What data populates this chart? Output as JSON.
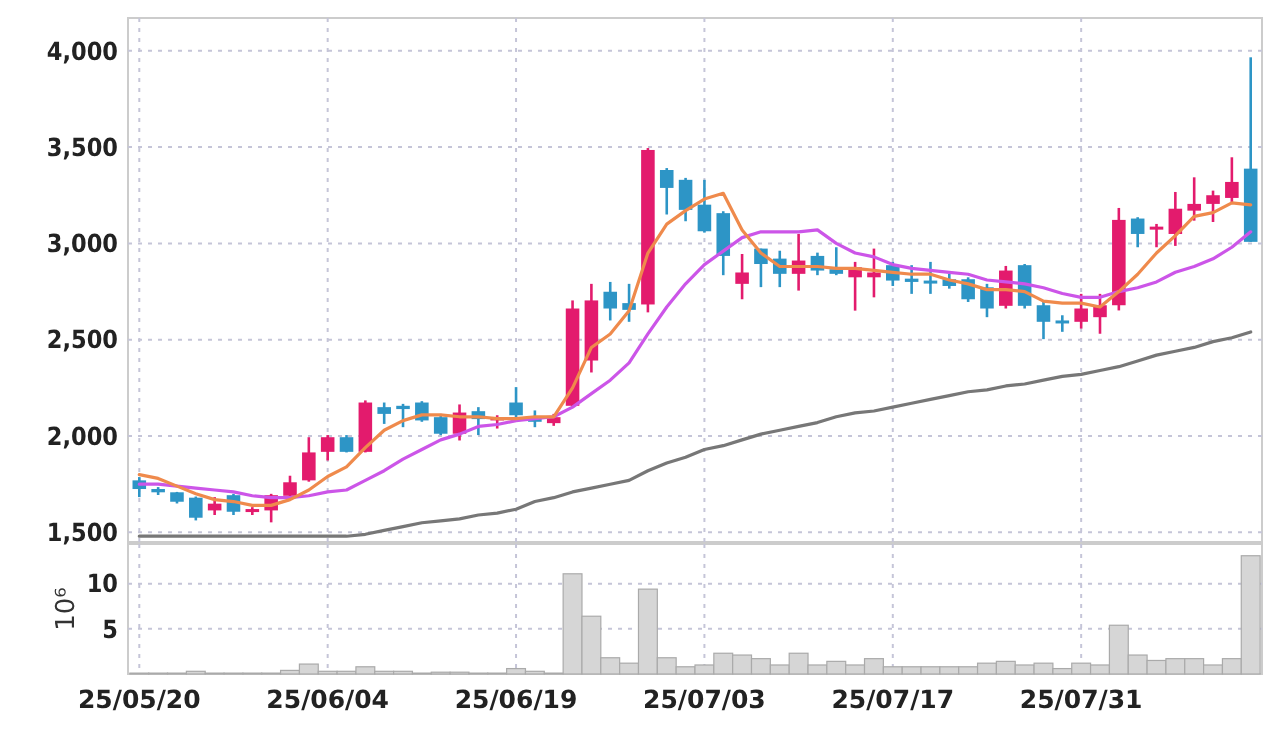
{
  "chart_data": [
    {
      "type": "candlestick",
      "categories": [
        null,
        null,
        null,
        null,
        null,
        null,
        null,
        null,
        null,
        null,
        null,
        null,
        null,
        null,
        null,
        null,
        null,
        null,
        null,
        null,
        null,
        null,
        null,
        null,
        null,
        null,
        null,
        null,
        null,
        null,
        null,
        null,
        null,
        null,
        null,
        null,
        null,
        null,
        null,
        null,
        null,
        null,
        null,
        null,
        null,
        null,
        null,
        null,
        null,
        null,
        null,
        null,
        null,
        null,
        null,
        null,
        null,
        null,
        null,
        null
      ],
      "ohlc": [
        [
          1770,
          1787,
          1683,
          1725
        ],
        [
          1725,
          1735,
          1694,
          1708
        ],
        [
          1708,
          1710,
          1650,
          1659
        ],
        [
          1680,
          1686,
          1562,
          1576
        ],
        [
          1614,
          1683,
          1590,
          1649
        ],
        [
          1693,
          1700,
          1590,
          1607
        ],
        [
          1607,
          1631,
          1590,
          1621
        ],
        [
          1614,
          1700,
          1552,
          1693
        ],
        [
          1690,
          1794,
          1683,
          1760
        ],
        [
          1770,
          1994,
          1763,
          1915
        ],
        [
          1918,
          2005,
          1873,
          1994
        ],
        [
          1994,
          2005,
          1915,
          1918
        ],
        [
          1918,
          2185,
          1915,
          2174
        ],
        [
          2150,
          2174,
          2063,
          2115
        ],
        [
          2157,
          2167,
          2046,
          2140
        ],
        [
          2174,
          2181,
          2074,
          2081
        ],
        [
          2098,
          2115,
          2005,
          2012
        ],
        [
          2012,
          2164,
          1977,
          2122
        ],
        [
          2129,
          2150,
          2005,
          2088
        ],
        [
          2081,
          2108,
          2039,
          2098
        ],
        [
          2174,
          2254,
          2098,
          2108
        ],
        [
          2098,
          2133,
          2046,
          2074
        ],
        [
          2067,
          2115,
          2053,
          2098
        ],
        [
          2157,
          2704,
          2150,
          2662
        ],
        [
          2392,
          2790,
          2330,
          2704
        ],
        [
          2749,
          2800,
          2600,
          2662
        ],
        [
          2690,
          2790,
          2593,
          2655
        ],
        [
          2683,
          3495,
          2642,
          3485
        ],
        [
          3381,
          3391,
          3150,
          3288
        ],
        [
          3330,
          3340,
          3115,
          3174
        ],
        [
          3201,
          3330,
          3056,
          3063
        ],
        [
          3157,
          3167,
          2835,
          2935
        ],
        [
          2790,
          2945,
          2710,
          2849
        ],
        [
          2973,
          2973,
          2773,
          2893
        ],
        [
          2921,
          2962,
          2773,
          2842
        ],
        [
          2842,
          3049,
          2755,
          2911
        ],
        [
          2935,
          2952,
          2835,
          2859
        ],
        [
          2866,
          2980,
          2835,
          2842
        ],
        [
          2824,
          2904,
          2651,
          2876
        ],
        [
          2824,
          2973,
          2720,
          2849
        ],
        [
          2887,
          2904,
          2779,
          2807
        ],
        [
          2817,
          2887,
          2738,
          2800
        ],
        [
          2807,
          2904,
          2738,
          2800
        ],
        [
          2814,
          2842,
          2765,
          2779
        ],
        [
          2814,
          2824,
          2696,
          2710
        ],
        [
          2772,
          2790,
          2617,
          2662
        ],
        [
          2676,
          2883,
          2662,
          2859
        ],
        [
          2887,
          2893,
          2662,
          2676
        ],
        [
          2679,
          2696,
          2503,
          2593
        ],
        [
          2600,
          2627,
          2541,
          2589
        ],
        [
          2593,
          2738,
          2558,
          2662
        ],
        [
          2617,
          2738,
          2531,
          2679
        ],
        [
          2679,
          3184,
          2652,
          3122
        ],
        [
          3129,
          3136,
          2980,
          3049
        ],
        [
          3073,
          3101,
          2980,
          3087
        ],
        [
          3049,
          3267,
          2987,
          3180
        ],
        [
          3170,
          3343,
          3118,
          3205
        ],
        [
          3205,
          3274,
          3111,
          3250
        ],
        [
          3236,
          3447,
          3212,
          3319
        ],
        [
          3388,
          3966,
          3008,
          3008
        ]
      ],
      "colors": [
        "#2d95c6",
        "#2d95c6",
        "#2d95c6",
        "#2d95c6",
        "#e31b6d",
        "#2d95c6",
        "#e31b6d",
        "#e31b6d",
        "#e31b6d",
        "#e31b6d",
        "#e31b6d",
        "#2d95c6",
        "#e31b6d",
        "#2d95c6",
        "#2d95c6",
        "#2d95c6",
        "#2d95c6",
        "#e31b6d",
        "#2d95c6",
        "#e31b6d",
        "#2d95c6",
        "#2d95c6",
        "#e31b6d",
        "#e31b6d",
        "#e31b6d",
        "#2d95c6",
        "#2d95c6",
        "#e31b6d",
        "#2d95c6",
        "#2d95c6",
        "#2d95c6",
        "#2d95c6",
        "#e31b6d",
        "#2d95c6",
        "#2d95c6",
        "#e31b6d",
        "#2d95c6",
        "#2d95c6",
        "#e31b6d",
        "#e31b6d",
        "#2d95c6",
        "#2d95c6",
        "#2d95c6",
        "#2d95c6",
        "#2d95c6",
        "#2d95c6",
        "#e31b6d",
        "#2d95c6",
        "#2d95c6",
        "#2d95c6",
        "#e31b6d",
        "#e31b6d",
        "#e31b6d",
        "#2d95c6",
        "#e31b6d",
        "#e31b6d",
        "#e31b6d",
        "#e31b6d",
        "#e31b6d",
        "#2d95c6"
      ],
      "series": [
        {
          "type": "line",
          "color": "#777777",
          "values": [
            1480,
            1480,
            1480,
            1480,
            1480,
            1480,
            1480,
            1480,
            1480,
            1480,
            1480,
            1480,
            1490,
            1510,
            1530,
            1550,
            1560,
            1570,
            1590,
            1600,
            1620,
            1660,
            1680,
            1710,
            1730,
            1750,
            1770,
            1820,
            1860,
            1890,
            1930,
            1950,
            1980,
            2010,
            2030,
            2050,
            2070,
            2100,
            2120,
            2130,
            2150,
            2170,
            2190,
            2210,
            2230,
            2240,
            2260,
            2270,
            2290,
            2310,
            2320,
            2340,
            2360,
            2390,
            2420,
            2440,
            2460,
            2490,
            2510,
            2540
          ]
        },
        {
          "type": "line",
          "color": "#cc55e8",
          "values": [
            1750,
            1750,
            1740,
            1730,
            1720,
            1710,
            1690,
            1680,
            1680,
            1690,
            1710,
            1720,
            1770,
            1820,
            1880,
            1930,
            1980,
            2010,
            2050,
            2060,
            2080,
            2090,
            2100,
            2150,
            2220,
            2290,
            2380,
            2530,
            2670,
            2790,
            2890,
            2960,
            3030,
            3060,
            3060,
            3060,
            3070,
            3000,
            2950,
            2930,
            2890,
            2870,
            2860,
            2850,
            2840,
            2810,
            2800,
            2790,
            2770,
            2740,
            2720,
            2720,
            2750,
            2770,
            2800,
            2850,
            2880,
            2920,
            2980,
            3060
          ]
        },
        {
          "type": "line",
          "color": "#ef8a4c",
          "values": [
            1800,
            1780,
            1740,
            1700,
            1670,
            1660,
            1640,
            1640,
            1670,
            1720,
            1790,
            1840,
            1940,
            2030,
            2080,
            2110,
            2110,
            2100,
            2100,
            2090,
            2090,
            2100,
            2100,
            2250,
            2460,
            2530,
            2650,
            2950,
            3100,
            3170,
            3230,
            3260,
            3070,
            2950,
            2880,
            2880,
            2880,
            2870,
            2870,
            2860,
            2850,
            2840,
            2840,
            2810,
            2790,
            2760,
            2760,
            2750,
            2700,
            2690,
            2690,
            2670,
            2750,
            2840,
            2950,
            3040,
            3140,
            3160,
            3210,
            3200
          ]
        }
      ],
      "ylim": [
        1450,
        4170
      ],
      "yticks": [
        {
          "value": 1500,
          "label": "1,500"
        },
        {
          "value": 2000,
          "label": "2,000"
        },
        {
          "value": 2500,
          "label": "2,500"
        },
        {
          "value": 3000,
          "label": "3,000"
        },
        {
          "value": 3500,
          "label": "3,500"
        },
        {
          "value": 4000,
          "label": "4,000"
        }
      ],
      "grid": true,
      "tick_labels": "y"
    },
    {
      "type": "bar",
      "categories": [
        "25/05/20",
        null,
        null,
        null,
        null,
        null,
        null,
        null,
        null,
        null,
        "25/06/04",
        null,
        null,
        null,
        null,
        null,
        null,
        null,
        null,
        null,
        "25/06/19",
        null,
        null,
        null,
        null,
        null,
        null,
        null,
        null,
        null,
        "25/07/03",
        null,
        null,
        null,
        null,
        null,
        null,
        null,
        null,
        null,
        "25/07/17",
        null,
        null,
        null,
        null,
        null,
        null,
        null,
        null,
        null,
        "25/07/31",
        null,
        null,
        null,
        null,
        null,
        null,
        null,
        null,
        null
      ],
      "values": [
        0.1,
        0.1,
        0.1,
        0.3,
        0.1,
        0.1,
        0.1,
        0.1,
        0.4,
        1.1,
        0.3,
        0.3,
        0.8,
        0.3,
        0.3,
        0.1,
        0.2,
        0.2,
        0.1,
        0.1,
        0.6,
        0.3,
        0.1,
        11.1,
        6.4,
        1.8,
        1.2,
        9.4,
        1.8,
        0.8,
        1.0,
        2.3,
        2.1,
        1.7,
        1.0,
        2.3,
        1.0,
        1.4,
        1.0,
        1.7,
        0.8,
        0.8,
        0.8,
        0.8,
        0.8,
        1.2,
        1.4,
        1.0,
        1.2,
        0.6,
        1.2,
        1.0,
        5.4,
        2.1,
        1.5,
        1.7,
        1.7,
        1.0,
        1.7,
        13.1
      ],
      "color": "#d6d6d6",
      "ylabel": "10⁶",
      "ylim": [
        0,
        14.4
      ],
      "yticks": [
        5,
        10
      ],
      "grid": true
    }
  ]
}
